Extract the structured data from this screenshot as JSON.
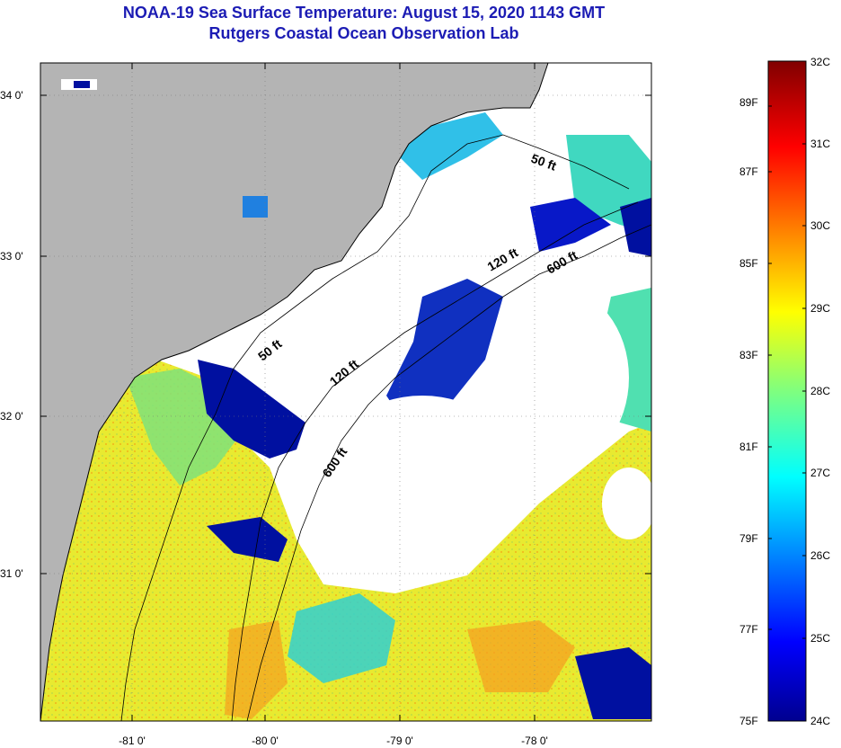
{
  "header": {
    "title": "NOAA-19 Sea Surface Temperature:  August 15, 2020 1143 GMT",
    "subtitle": "Rutgers Coastal Ocean Observation Lab"
  },
  "map": {
    "lat_labels": [
      "34 0'",
      "33 0'",
      "32 0'",
      "31 0'"
    ],
    "lon_labels": [
      "-81 0'",
      "-80 0'",
      "-79 0'",
      "-78 0'"
    ],
    "contours": [
      "50 ft",
      "50 ft",
      "120 ft",
      "120 ft",
      "600 ft",
      "600 ft"
    ],
    "colors": {
      "land": "#b4b4b4",
      "cloud": "#ffffff",
      "frame": "#000000"
    }
  },
  "colorbar": {
    "fahrenheit_labels": [
      "89F",
      "87F",
      "85F",
      "83F",
      "81F",
      "79F",
      "77F",
      "75F"
    ],
    "celsius_labels": [
      "32C",
      "31C",
      "30C",
      "29C",
      "28C",
      "27C",
      "26C",
      "25C",
      "24C"
    ],
    "range_c": [
      24,
      32
    ],
    "colormap": "jet"
  }
}
